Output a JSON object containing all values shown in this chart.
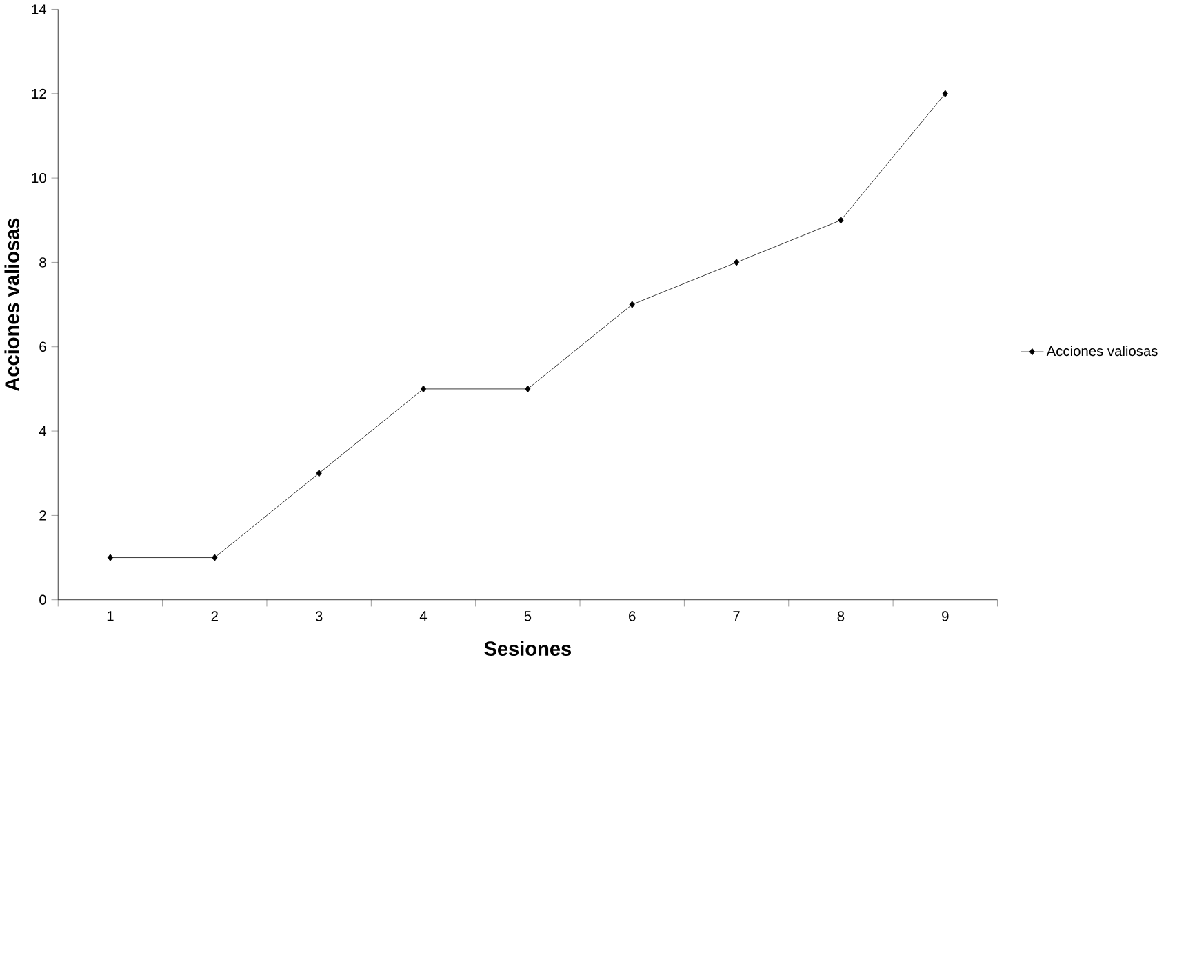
{
  "chart_data": {
    "type": "line",
    "xlabel": "Sesiones",
    "ylabel": "Acciones valiosas",
    "categories": [
      "1",
      "2",
      "3",
      "4",
      "5",
      "6",
      "7",
      "8",
      "9"
    ],
    "series": [
      {
        "name": "Acciones valiosas",
        "color": "#000000",
        "values": [
          1,
          1,
          3,
          5,
          5,
          7,
          8,
          9,
          12
        ]
      }
    ],
    "ylim": [
      0,
      14
    ],
    "yticks": [
      0,
      2,
      4,
      6,
      8,
      10,
      12,
      14
    ],
    "legend": "right",
    "marker": "diamond",
    "line_style": "solid",
    "grid": false
  }
}
